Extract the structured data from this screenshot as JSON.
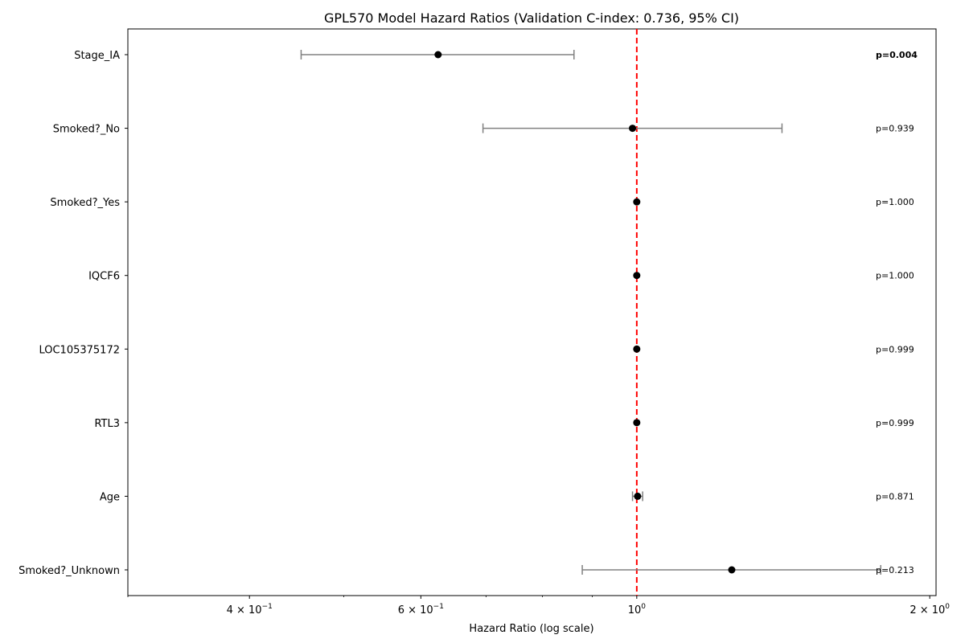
{
  "chart_data": {
    "type": "forest",
    "title": "GPL570 Model Hazard Ratios (Validation C-index: 0.736, 95% CI)",
    "xlabel": "Hazard Ratio (log scale)",
    "xscale": "log",
    "xlim": [
      0.3,
      2.03
    ],
    "xticks": [
      {
        "value": 0.4,
        "base": "4 × 10",
        "exp": "−1"
      },
      {
        "value": 0.6,
        "base": "6 × 10",
        "exp": "−1"
      },
      {
        "value": 1.0,
        "base": "10",
        "exp": "0"
      },
      {
        "value": 2.0,
        "base": "2 × 10",
        "exp": "0"
      }
    ],
    "minor_ticks": [
      0.3,
      0.5,
      0.7,
      0.8,
      0.9
    ],
    "reference_line": {
      "value": 1.0,
      "color": "#ff0000",
      "style": "dashed"
    },
    "marker_color": "#000000",
    "ci_color": "#808080",
    "rows": [
      {
        "label": "Stage_IA",
        "hr": 0.625,
        "lower": 0.452,
        "upper": 0.862,
        "p": "p=0.004",
        "significant": true
      },
      {
        "label": "Smoked?_No",
        "hr": 0.99,
        "lower": 0.695,
        "upper": 1.41,
        "p": "p=0.939",
        "significant": false
      },
      {
        "label": "Smoked?_Yes",
        "hr": 1.0,
        "lower": 1.0,
        "upper": 1.0,
        "p": "p=1.000",
        "significant": false
      },
      {
        "label": "IQCF6",
        "hr": 1.0,
        "lower": 1.0,
        "upper": 1.0,
        "p": "p=1.000",
        "significant": false
      },
      {
        "label": "LOC105375172",
        "hr": 1.0,
        "lower": 1.0,
        "upper": 1.0,
        "p": "p=0.999",
        "significant": false
      },
      {
        "label": "RTL3",
        "hr": 1.0,
        "lower": 1.0,
        "upper": 1.0,
        "p": "p=0.999",
        "significant": false
      },
      {
        "label": "Age",
        "hr": 1.002,
        "lower": 0.99,
        "upper": 1.014,
        "p": "p=0.871",
        "significant": false
      },
      {
        "label": "Smoked?_Unknown",
        "hr": 1.252,
        "lower": 0.879,
        "upper": 1.781,
        "p": "p=0.213",
        "significant": false
      }
    ]
  }
}
